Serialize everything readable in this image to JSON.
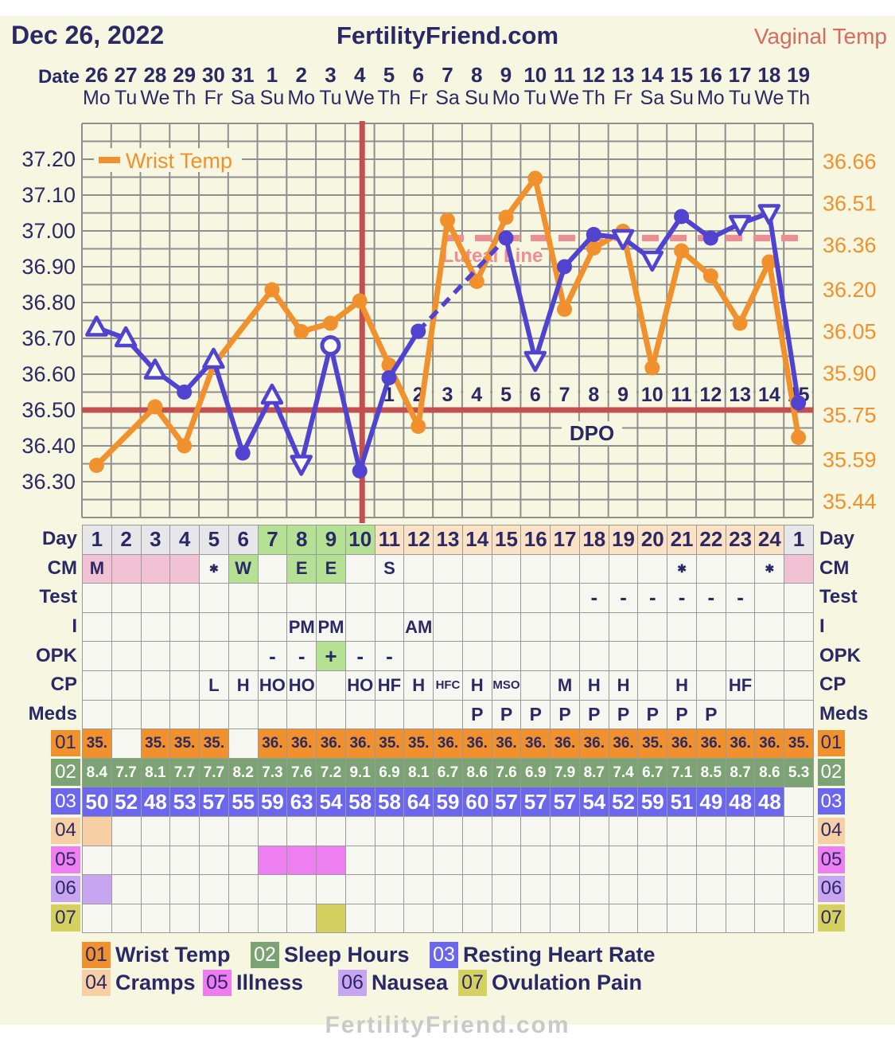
{
  "header": {
    "date_label": "Dec 26, 2022",
    "site": "FertilityFriend.com",
    "mode": "Vaginal Temp"
  },
  "date_row": {
    "label": "Date",
    "dates": [
      "26",
      "27",
      "28",
      "29",
      "30",
      "31",
      "1",
      "2",
      "3",
      "4",
      "5",
      "6",
      "7",
      "8",
      "9",
      "10",
      "11",
      "12",
      "13",
      "14",
      "15",
      "16",
      "17",
      "18",
      "19"
    ],
    "weekdays": [
      "Mo",
      "Tu",
      "We",
      "Th",
      "Fr",
      "Sa",
      "Su",
      "Mo",
      "Tu",
      "We",
      "Th",
      "Fr",
      "Sa",
      "Su",
      "Mo",
      "Tu",
      "We",
      "Th",
      "Fr",
      "Sa",
      "Su",
      "Mo",
      "Tu",
      "We",
      "Th"
    ]
  },
  "chart_data": {
    "type": "line",
    "x_days": [
      1,
      2,
      3,
      4,
      5,
      6,
      7,
      8,
      9,
      10,
      11,
      12,
      13,
      14,
      15,
      16,
      17,
      18,
      19,
      20,
      21,
      22,
      23,
      24,
      25
    ],
    "left_axis": {
      "ticks": [
        "37.20",
        "37.10",
        "37.00",
        "36.90",
        "36.80",
        "36.70",
        "36.60",
        "36.50",
        "36.40",
        "36.30"
      ],
      "color": "#2b2965"
    },
    "right_axis": {
      "ticks": [
        "36.66",
        "36.51",
        "36.36",
        "36.20",
        "36.05",
        "35.90",
        "35.75",
        "35.59",
        "35.44"
      ],
      "color": "#f0912d"
    },
    "series": [
      {
        "name": "Vaginal Temp",
        "axis": "left",
        "color": "#4f43cf",
        "values": [
          36.73,
          36.7,
          36.61,
          36.55,
          36.64,
          36.38,
          36.54,
          36.35,
          36.68,
          36.33,
          36.59,
          36.72,
          null,
          null,
          36.98,
          36.64,
          36.9,
          36.99,
          36.98,
          36.92,
          37.04,
          36.98,
          37.02,
          37.05,
          36.52
        ],
        "markers": [
          "triangle-up",
          "triangle-up",
          "triangle-up",
          "circle",
          "triangle-up",
          "circle",
          "triangle-up",
          "triangle-down",
          "circle-open",
          "circle",
          "circle",
          "circle",
          null,
          null,
          "circle",
          "triangle-down",
          "circle",
          "circle",
          "triangle-down",
          "triangle-down",
          "circle",
          "circle",
          "triangle-down",
          "triangle-down",
          "circle"
        ],
        "dashed_gap": [
          12,
          15
        ]
      },
      {
        "name": "Wrist Temp",
        "axis": "right",
        "color": "#f0912d",
        "values": [
          35.57,
          null,
          35.78,
          35.64,
          35.93,
          null,
          36.2,
          36.05,
          36.08,
          36.16,
          35.93,
          35.71,
          36.45,
          36.23,
          36.46,
          36.6,
          36.13,
          36.35,
          36.41,
          35.92,
          36.34,
          36.25,
          36.08,
          36.3,
          35.67
        ],
        "markers_all": "circle"
      }
    ],
    "coverline_value": 36.5,
    "ovulation_line_after_day": 10,
    "luteal_line": {
      "label": "Luteal Line",
      "value": 36.98
    },
    "dpo": {
      "label": "DPO",
      "numbers": [
        "1",
        "2",
        "3",
        "4",
        "5",
        "6",
        "7",
        "8",
        "9",
        "10",
        "11",
        "12",
        "13",
        "14",
        "15"
      ],
      "start_day": 11
    },
    "inner_legend": "Wrist Temp"
  },
  "grid": {
    "side_labels": [
      "Day",
      "CM",
      "Test",
      "I",
      "OPK",
      "CP",
      "Meds",
      "01",
      "02",
      "03",
      "04",
      "05",
      "06",
      "07"
    ],
    "rows": [
      {
        "key": "day",
        "values": [
          "1",
          "2",
          "3",
          "4",
          "5",
          "6",
          "7",
          "8",
          "9",
          "10",
          "11",
          "12",
          "13",
          "14",
          "15",
          "16",
          "17",
          "18",
          "19",
          "20",
          "21",
          "22",
          "23",
          "24",
          "1"
        ],
        "bg": [
          "gray",
          "gray",
          "gray",
          "gray",
          "gray",
          "gray",
          "green",
          "green",
          "green",
          "green",
          "peach",
          "peach",
          "peach",
          "peach",
          "peach",
          "peach",
          "peach",
          "peach",
          "peach",
          "peach",
          "peach",
          "peach",
          "peach",
          "peach",
          "gray"
        ]
      },
      {
        "key": "cm",
        "values": [
          "M",
          "",
          "",
          "",
          "✱",
          "W",
          "",
          "E",
          "E",
          "",
          "S",
          "",
          "",
          "",
          "",
          "",
          "",
          "",
          "",
          "",
          "✱",
          "",
          "",
          "✱",
          ""
        ],
        "bg": [
          "pink",
          "pink",
          "pink",
          "pink",
          null,
          "green",
          null,
          "green",
          "green",
          null,
          null,
          null,
          null,
          null,
          null,
          null,
          null,
          null,
          null,
          null,
          null,
          null,
          null,
          null,
          "pink"
        ]
      },
      {
        "key": "test",
        "values": [
          "",
          "",
          "",
          "",
          "",
          "",
          "",
          "",
          "",
          "",
          "",
          "",
          "",
          "",
          "",
          "",
          "",
          "-",
          "-",
          "-",
          "-",
          "-",
          "-",
          "",
          ""
        ],
        "bg": []
      },
      {
        "key": "i",
        "values": [
          "",
          "",
          "",
          "",
          "",
          "",
          "",
          "PM",
          "PM",
          "",
          "",
          "AM",
          "",
          "",
          "",
          "",
          "",
          "",
          "",
          "",
          "",
          "",
          "",
          "",
          ""
        ],
        "bg": []
      },
      {
        "key": "opk",
        "values": [
          "",
          "",
          "",
          "",
          "",
          "",
          "-",
          "-",
          "+",
          "-",
          "-",
          "",
          "",
          "",
          "",
          "",
          "",
          "",
          "",
          "",
          "",
          "",
          "",
          "",
          ""
        ],
        "bg": [
          null,
          null,
          null,
          null,
          null,
          null,
          null,
          null,
          "green",
          null,
          null,
          null,
          null,
          null,
          null,
          null,
          null,
          null,
          null,
          null,
          null,
          null,
          null,
          null,
          null
        ]
      },
      {
        "key": "cp",
        "values": [
          "",
          "",
          "",
          "",
          "L",
          "H",
          "HO",
          "HO",
          "",
          "HO",
          "HF",
          "H",
          "HFC",
          "H",
          "MSO",
          "",
          "M",
          "H",
          "H",
          "",
          "H",
          "",
          "HF",
          "",
          ""
        ],
        "bg": []
      },
      {
        "key": "meds",
        "values": [
          "",
          "",
          "",
          "",
          "",
          "",
          "",
          "",
          "",
          "",
          "",
          "",
          "",
          "P",
          "P",
          "P",
          "P",
          "P",
          "P",
          "P",
          "P",
          "P",
          "",
          "",
          ""
        ],
        "bg": []
      },
      {
        "key": "r01",
        "values": [
          "35.",
          "",
          "35.",
          "35.",
          "35.",
          "",
          "36.",
          "36.",
          "36.",
          "36.",
          "35.",
          "35.",
          "36.",
          "36.",
          "36.",
          "36.",
          "36.",
          "36.",
          "36.",
          "35.",
          "36.",
          "36.",
          "36.",
          "36.",
          "35."
        ],
        "bg": [
          "orange",
          null,
          "orange",
          "orange",
          "orange",
          null,
          "orange",
          "orange",
          "orange",
          "orange",
          "orange",
          "orange",
          "orange",
          "orange",
          "orange",
          "orange",
          "orange",
          "orange",
          "orange",
          "orange",
          "orange",
          "orange",
          "orange",
          "orange",
          "orange"
        ]
      },
      {
        "key": "r02",
        "values": [
          "8.4",
          "7.7",
          "8.1",
          "7.7",
          "7.7",
          "8.2",
          "7.3",
          "7.6",
          "7.2",
          "9.1",
          "6.9",
          "8.1",
          "6.7",
          "8.6",
          "7.6",
          "6.9",
          "7.9",
          "8.7",
          "7.4",
          "6.7",
          "7.1",
          "8.5",
          "8.7",
          "8.6",
          "5.3"
        ],
        "bg": [
          "sage",
          "sage",
          "sage",
          "sage",
          "sage",
          "sage",
          "sage",
          "sage",
          "sage",
          "sage",
          "sage",
          "sage",
          "sage",
          "sage",
          "sage",
          "sage",
          "sage",
          "sage",
          "sage",
          "sage",
          "sage",
          "sage",
          "sage",
          "sage",
          "sage"
        ]
      },
      {
        "key": "r03",
        "values": [
          "50",
          "52",
          "48",
          "53",
          "57",
          "55",
          "59",
          "63",
          "54",
          "58",
          "58",
          "64",
          "59",
          "60",
          "57",
          "57",
          "57",
          "54",
          "52",
          "59",
          "51",
          "49",
          "48",
          "48",
          ""
        ],
        "bg": [
          "violet",
          "violet",
          "violet",
          "violet",
          "violet",
          "violet",
          "violet",
          "violet",
          "violet",
          "violet",
          "violet",
          "violet",
          "violet",
          "violet",
          "violet",
          "violet",
          "violet",
          "violet",
          "violet",
          "violet",
          "violet",
          "violet",
          "violet",
          "violet",
          null
        ]
      },
      {
        "key": "r04",
        "values": [],
        "bg": [
          "peach04"
        ]
      },
      {
        "key": "r05",
        "values": [],
        "bg": [
          null,
          null,
          null,
          null,
          null,
          null,
          "magenta",
          "magenta",
          "magenta"
        ]
      },
      {
        "key": "r06",
        "values": [],
        "bg": [
          "lav"
        ]
      },
      {
        "key": "r07",
        "values": [],
        "bg": [
          null,
          null,
          null,
          null,
          null,
          null,
          null,
          null,
          "olive"
        ]
      }
    ]
  },
  "legend": {
    "row1": [
      {
        "code": "01",
        "label": "Wrist Temp",
        "color": "#f0912d",
        "text_color": "#2b2965"
      },
      {
        "code": "02",
        "label": "Sleep Hours",
        "color": "#7ca373",
        "text_color": "#ffffff"
      },
      {
        "code": "03",
        "label": "Resting Heart Rate",
        "color": "#6b66ee",
        "text_color": "#ffffff"
      }
    ],
    "row2": [
      {
        "code": "04",
        "label": "Cramps",
        "color": "#f6cfa4",
        "text_color": "#2b2965"
      },
      {
        "code": "05",
        "label": "Illness",
        "color": "#f07af0",
        "text_color": "#2b2965"
      },
      {
        "code": "06",
        "label": "Nausea",
        "color": "#c8a5f0",
        "text_color": "#2b2965"
      },
      {
        "code": "07",
        "label": "Ovulation Pain",
        "color": "#d5d161",
        "text_color": "#2b2965"
      }
    ]
  },
  "footer": {
    "partial_text": "FertilityFriend.com"
  },
  "colors": {
    "navy": "#2b2965",
    "cream": "#f6f6e1",
    "cell_bg": "#f7f7f1",
    "grid_line": "#8f8f8f",
    "cell_border": "#9a9a9a",
    "orange": "#f0912d",
    "blue": "#4f43cf",
    "red_line": "#c25050",
    "luteal_pink": "#ef8d95",
    "header_mode": "#d96a62",
    "gray": "#e7e7ea",
    "green": "#b4e194",
    "peach": "#fbe2c5",
    "pink": "#f1c2d3",
    "orange_cell": "#f0912d",
    "sage": "#7ca373",
    "violet": "#6b66ee",
    "peach04": "#f6cfa4",
    "magenta": "#ee7ff0",
    "lav": "#c8a5f0",
    "olive": "#d5d161"
  }
}
